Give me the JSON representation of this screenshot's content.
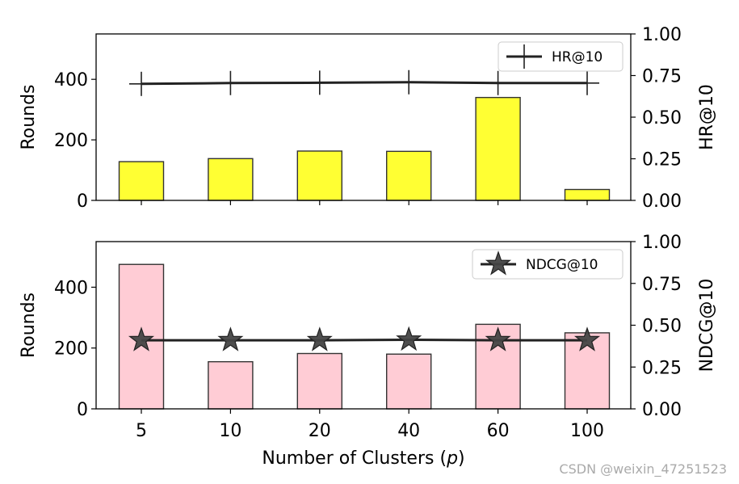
{
  "chart_data": [
    {
      "type": "bar",
      "categories": [
        "5",
        "10",
        "20",
        "40",
        "60",
        "100"
      ],
      "bar_series": {
        "name": "",
        "values": [
          128,
          138,
          163,
          162,
          340,
          36
        ],
        "color": "#ffff33"
      },
      "line_series": {
        "name": "HR@10",
        "values": [
          0.7,
          0.705,
          0.707,
          0.71,
          0.705,
          0.705
        ],
        "marker": "plus"
      },
      "ylabel": "Rounds",
      "ylim": [
        0,
        550
      ],
      "yticks": [
        0,
        200,
        400
      ],
      "y2label": "HR@10",
      "y2lim": [
        0,
        1
      ],
      "y2ticks": [
        "0.00",
        "0.25",
        "0.50",
        "0.75",
        "1.00"
      ],
      "legend_position": "top-right",
      "show_xtick_labels": false
    },
    {
      "type": "bar",
      "categories": [
        "5",
        "10",
        "20",
        "40",
        "60",
        "100"
      ],
      "bar_series": {
        "name": "",
        "values": [
          475,
          155,
          182,
          180,
          278,
          250
        ],
        "color": "#ffccd5"
      },
      "line_series": {
        "name": "NDCG@10",
        "values": [
          0.41,
          0.41,
          0.41,
          0.413,
          0.41,
          0.41
        ],
        "marker": "star"
      },
      "ylabel": "Rounds",
      "ylim": [
        0,
        550
      ],
      "yticks": [
        0,
        200,
        400
      ],
      "y2label": "NDCG@10",
      "y2lim": [
        0,
        1
      ],
      "y2ticks": [
        "0.00",
        "0.25",
        "0.50",
        "0.75",
        "1.00"
      ],
      "legend_position": "top-right",
      "xlabel": "Number of Clusters (",
      "xlabel_var": "p",
      "xlabel_end": ")",
      "show_xtick_labels": true
    }
  ],
  "watermark": "CSDN @weixin_47251523"
}
